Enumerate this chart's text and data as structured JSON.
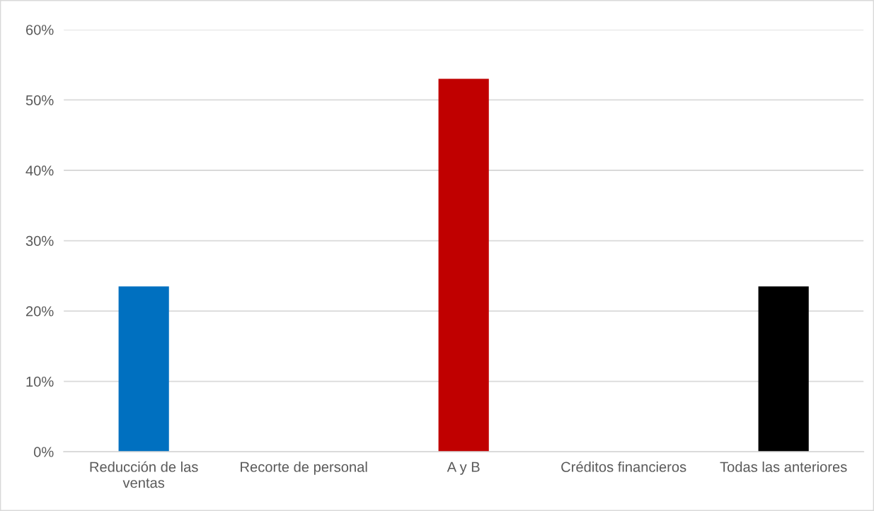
{
  "chart_data": {
    "type": "bar",
    "categories": [
      "Reducción de las ventas",
      "Recorte de personal",
      "A y B",
      "Créditos financieros",
      "Todas las anteriores"
    ],
    "values": [
      23.5,
      0,
      53,
      0,
      23.5
    ],
    "colors": [
      "#0070c0",
      null,
      "#c00000",
      null,
      "#000000"
    ],
    "ylim": [
      0,
      60
    ],
    "yticks": [
      {
        "value": 0,
        "label": "0%"
      },
      {
        "value": 10,
        "label": "10%"
      },
      {
        "value": 20,
        "label": "20%"
      },
      {
        "value": 30,
        "label": "30%"
      },
      {
        "value": 40,
        "label": "40%"
      },
      {
        "value": 50,
        "label": "50%"
      },
      {
        "value": 60,
        "label": "60%"
      }
    ],
    "grid": "y",
    "legend": false
  }
}
